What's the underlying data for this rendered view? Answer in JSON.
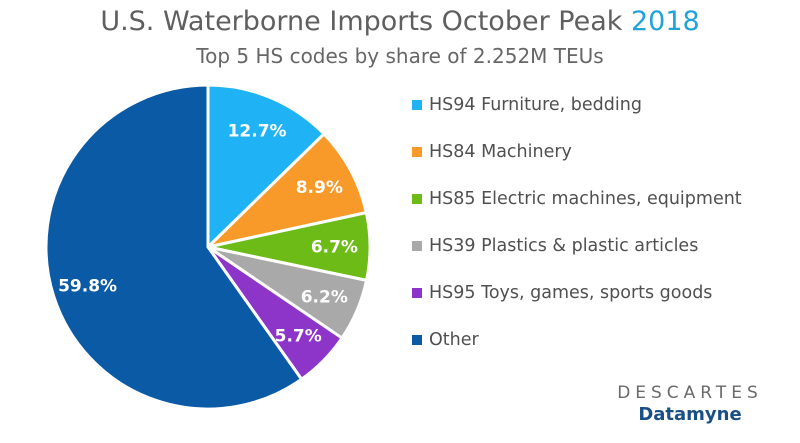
{
  "header": {
    "title_main": "U.S. Waterborne Imports October Peak",
    "title_year": "2018",
    "subtitle": "Top 5 HS codes by share of 2.252M TEUs"
  },
  "chart_data": {
    "type": "pie",
    "title": "U.S. Waterborne Imports October Peak 2018",
    "subtitle": "Top 5 HS codes by share of 2.252M TEUs",
    "legend_position": "right",
    "slices": [
      {
        "label": "HS94 Furniture, bedding",
        "value": 12.7,
        "value_label": "12.7%",
        "color": "#1fb2f4"
      },
      {
        "label": "HS84 Machinery",
        "value": 8.9,
        "value_label": "8.9%",
        "color": "#f79a2a"
      },
      {
        "label": "HS85 Electric machines, equipment",
        "value": 6.7,
        "value_label": "6.7%",
        "color": "#6cbb16"
      },
      {
        "label": "HS39 Plastics & plastic articles",
        "value": 6.2,
        "value_label": "6.2%",
        "color": "#a9a9a9"
      },
      {
        "label": "HS95 Toys, games, sports goods",
        "value": 5.7,
        "value_label": "5.7%",
        "color": "#8d34c9"
      },
      {
        "label": "Other",
        "value": 59.8,
        "value_label": "59.8%",
        "color": "#0b5aa5"
      }
    ]
  },
  "brand": {
    "name_top": "DESCARTES",
    "name_bottom": "Datamyne"
  }
}
